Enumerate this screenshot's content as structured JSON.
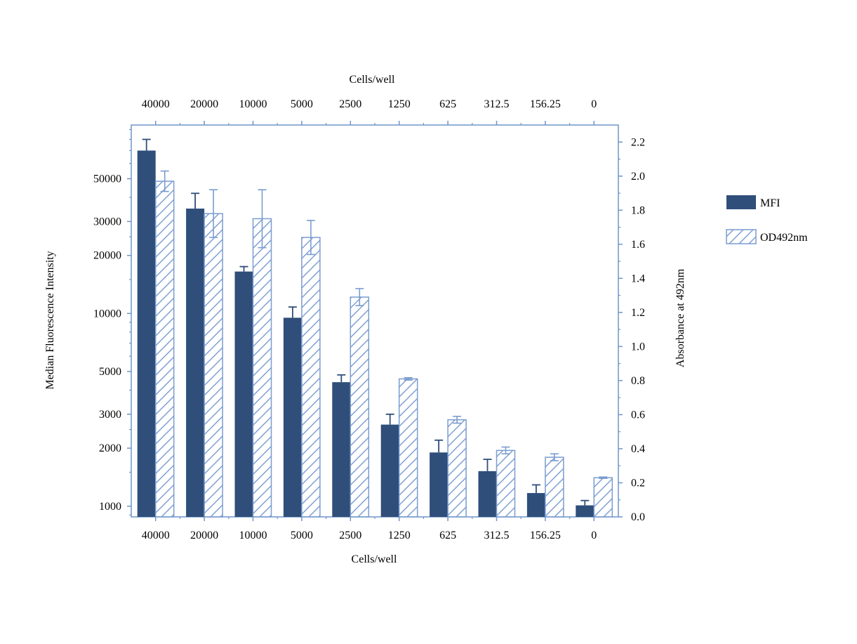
{
  "chart_data": {
    "type": "bar",
    "categories": [
      "40000",
      "20000",
      "10000",
      "5000",
      "2500",
      "1250",
      "625",
      "312.5",
      "156.25",
      "0"
    ],
    "xlabel": "Cells/well",
    "xlabel_top": "Cells/well",
    "ylabel_left": "Median Fluorescence Intensity",
    "ylabel_right": "Absorbance at 492nm",
    "left_axis": {
      "scale": "log",
      "range": [
        880,
        95000
      ],
      "ticks": [
        1000,
        2000,
        3000,
        5000,
        10000,
        20000,
        30000,
        50000
      ],
      "tick_labels": [
        "1000",
        "2000",
        "3000",
        "5000",
        "10000",
        "20000",
        "30000",
        "50000"
      ]
    },
    "right_axis": {
      "scale": "linear",
      "range": [
        0,
        2.3
      ],
      "ticks": [
        0,
        0.2,
        0.4,
        0.6,
        0.8,
        1.0,
        1.2,
        1.4,
        1.6,
        1.8,
        2.0,
        2.2
      ],
      "tick_labels": [
        "0.0",
        "0.2",
        "0.4",
        "0.6",
        "0.8",
        "1.0",
        "1.2",
        "1.4",
        "1.6",
        "1.8",
        "2.0",
        "2.2"
      ]
    },
    "series": [
      {
        "name": "MFI",
        "axis": "left",
        "style": "solid",
        "color": "#2f4e7a",
        "values": [
          70000,
          35000,
          16500,
          9500,
          4400,
          2650,
          1900,
          1520,
          1170,
          1010
        ],
        "errors": [
          10000,
          7000,
          1000,
          1300,
          400,
          350,
          300,
          230,
          120,
          60
        ]
      },
      {
        "name": "OD492nm",
        "axis": "right",
        "style": "hatched",
        "color": "#7a9cd0",
        "values": [
          1.97,
          1.78,
          1.75,
          1.64,
          1.29,
          0.81,
          0.57,
          0.39,
          0.35,
          0.23
        ],
        "errors": [
          0.06,
          0.14,
          0.17,
          0.1,
          0.05,
          0.007,
          0.02,
          0.02,
          0.02,
          0.004
        ]
      }
    ],
    "legend_position": "right",
    "grid": false
  }
}
